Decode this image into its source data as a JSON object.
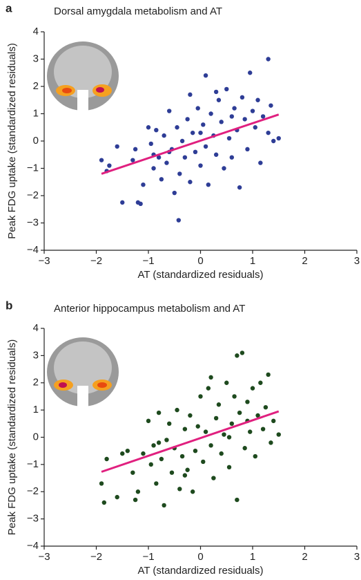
{
  "chart_data": [
    {
      "type": "scatter",
      "panel_label": "a",
      "title": "Dorsal amygdala metabolism and AT",
      "x_label": "AT (standardized residuals)",
      "y_label": "Peak FDG uptake (standardized residuals)",
      "xlim": [
        -3,
        3
      ],
      "ylim": [
        -4,
        4
      ],
      "xticks": [
        {
          "value": -3,
          "label": "−3"
        },
        {
          "value": -2,
          "label": "−2"
        },
        {
          "value": -1,
          "label": "−1"
        },
        0,
        1,
        2,
        3
      ],
      "yticks": [
        {
          "value": -4,
          "label": "−4"
        },
        {
          "value": -3,
          "label": "−3"
        },
        {
          "value": -2,
          "label": "−2"
        },
        {
          "value": -1,
          "label": "−1"
        },
        0,
        1,
        2,
        3,
        4
      ],
      "series": [
        {
          "color": "#2e3d96",
          "x": [
            -1.9,
            -1.8,
            -1.75,
            -1.5,
            -1.3,
            -1.25,
            -1.2,
            -1.15,
            -1.1,
            -1.0,
            -0.95,
            -0.9,
            -0.85,
            -0.8,
            -0.75,
            -0.7,
            -0.65,
            -0.6,
            -0.55,
            -0.5,
            -0.45,
            -0.42,
            -0.4,
            -0.35,
            -0.3,
            -0.25,
            -0.2,
            -0.15,
            -0.1,
            -0.05,
            0.0,
            0.05,
            0.1,
            0.1,
            0.15,
            0.2,
            0.25,
            0.3,
            0.35,
            0.4,
            0.45,
            0.5,
            0.55,
            0.6,
            0.65,
            0.7,
            0.75,
            0.8,
            0.85,
            0.9,
            0.95,
            1.0,
            1.05,
            1.1,
            1.15,
            1.2,
            1.3,
            1.3,
            1.35,
            1.4,
            1.5,
            -1.6,
            -0.2,
            0.3,
            -0.6,
            0.6,
            -0.9,
            0.0
          ],
          "values": [
            -0.7,
            -1.1,
            -0.9,
            -2.25,
            -0.7,
            -0.3,
            -2.25,
            -2.3,
            -1.6,
            0.5,
            -0.1,
            -1.0,
            0.4,
            -0.6,
            -1.4,
            0.2,
            -0.8,
            1.1,
            -0.3,
            -1.9,
            0.5,
            -2.9,
            -1.2,
            0.0,
            -0.6,
            0.8,
            -1.5,
            0.3,
            -0.4,
            1.2,
            -0.9,
            0.6,
            2.4,
            -0.2,
            -1.6,
            1.0,
            0.2,
            -0.5,
            1.5,
            0.7,
            -1.0,
            1.9,
            0.1,
            -0.6,
            1.2,
            0.4,
            -1.7,
            1.6,
            0.8,
            -0.3,
            2.5,
            1.1,
            0.5,
            1.5,
            -0.8,
            0.9,
            3.0,
            0.3,
            1.3,
            0.0,
            0.1,
            -0.2,
            1.7,
            1.8,
            -0.4,
            0.9,
            -0.5,
            0.3
          ]
        }
      ],
      "fit_line": {
        "color": "#e0207f",
        "x": [
          -1.9,
          1.5
        ],
        "values": [
          -1.2,
          0.97
        ]
      }
    },
    {
      "type": "scatter",
      "panel_label": "b",
      "title": "Anterior hippocampus metabolism and AT",
      "x_label": "AT (standardized residuals)",
      "y_label": "Peak FDG uptake (standardized residuals)",
      "xlim": [
        -3,
        3
      ],
      "ylim": [
        -4,
        4
      ],
      "xticks": [
        {
          "value": -3,
          "label": "−3"
        },
        {
          "value": -2,
          "label": "−2"
        },
        {
          "value": -1,
          "label": "−1"
        },
        0,
        1,
        2,
        3
      ],
      "yticks": [
        {
          "value": -4,
          "label": "−4"
        },
        {
          "value": -3,
          "label": "−3"
        },
        {
          "value": -2,
          "label": "−2"
        },
        {
          "value": -1,
          "label": "−1"
        },
        0,
        1,
        2,
        3,
        4
      ],
      "series": [
        {
          "color": "#1e4a1e",
          "x": [
            -1.9,
            -1.85,
            -1.8,
            -1.6,
            -1.4,
            -1.3,
            -1.25,
            -1.2,
            -1.1,
            -1.0,
            -0.95,
            -0.9,
            -0.85,
            -0.8,
            -0.75,
            -0.7,
            -0.65,
            -0.6,
            -0.55,
            -0.5,
            -0.45,
            -0.4,
            -0.35,
            -0.3,
            -0.25,
            -0.2,
            -0.15,
            -0.1,
            -0.05,
            0.0,
            0.05,
            0.1,
            0.15,
            0.2,
            0.25,
            0.3,
            0.35,
            0.4,
            0.45,
            0.5,
            0.55,
            0.6,
            0.65,
            0.7,
            0.7,
            0.75,
            0.8,
            0.85,
            0.9,
            0.95,
            1.0,
            1.05,
            1.1,
            1.15,
            1.2,
            1.25,
            1.3,
            1.35,
            1.4,
            1.5,
            -1.5,
            0.2,
            -0.3,
            0.55,
            -0.8,
            0.9
          ],
          "values": [
            -1.7,
            -2.4,
            -0.8,
            -2.2,
            -0.5,
            -1.3,
            -2.3,
            -2.0,
            -0.6,
            0.6,
            -1.0,
            -0.3,
            -1.7,
            0.9,
            -0.8,
            -2.5,
            -0.1,
            0.5,
            -1.3,
            -0.4,
            1.0,
            -1.9,
            -0.7,
            0.3,
            -1.2,
            0.8,
            -2.0,
            -0.5,
            0.4,
            1.5,
            -0.9,
            0.2,
            1.8,
            -0.3,
            -1.5,
            0.7,
            1.2,
            -0.6,
            0.1,
            2.0,
            -1.1,
            0.5,
            1.5,
            -2.3,
            3.0,
            0.9,
            3.1,
            -0.4,
            1.3,
            0.2,
            1.8,
            -0.7,
            0.8,
            2.0,
            0.3,
            1.1,
            2.3,
            -0.2,
            0.6,
            0.1,
            -0.6,
            2.2,
            -1.4,
            0.0,
            -0.2,
            0.6
          ]
        }
      ],
      "fit_line": {
        "color": "#e0207f",
        "x": [
          -1.9,
          1.5
        ],
        "values": [
          -1.27,
          0.95
        ]
      }
    }
  ]
}
